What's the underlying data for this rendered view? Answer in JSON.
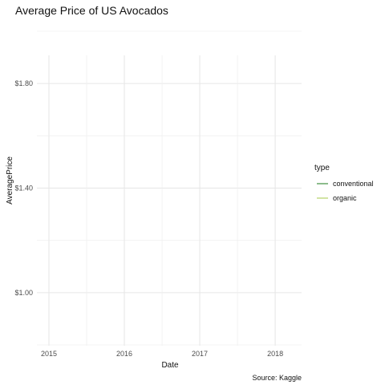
{
  "chart_data": {
    "type": "line",
    "title": "Average Price of US Avocados",
    "xlabel": "Date",
    "ylabel": "AveragePrice",
    "caption": "Source: Kaggle",
    "x_ticks": [
      "2015",
      "2016",
      "2017",
      "2018"
    ],
    "x_range": [
      2015.0,
      2018.35
    ],
    "y_ticks": [
      {
        "value": 1.0,
        "label": "$1.00"
      },
      {
        "value": 1.4,
        "label": "$1.40"
      },
      {
        "value": 1.8,
        "label": "$1.80"
      }
    ],
    "ylim": [
      0.8,
      2.0
    ],
    "grid": true,
    "legend": {
      "title": "type",
      "position": "right",
      "entries": [
        {
          "label": "conventional",
          "color": "#1a7a1a"
        },
        {
          "label": "organic",
          "color": "#a5c94a"
        }
      ]
    },
    "series": [
      {
        "name": "conventional",
        "color": "#1a7a1a",
        "values": []
      },
      {
        "name": "organic",
        "color": "#a5c94a",
        "values": []
      }
    ]
  }
}
